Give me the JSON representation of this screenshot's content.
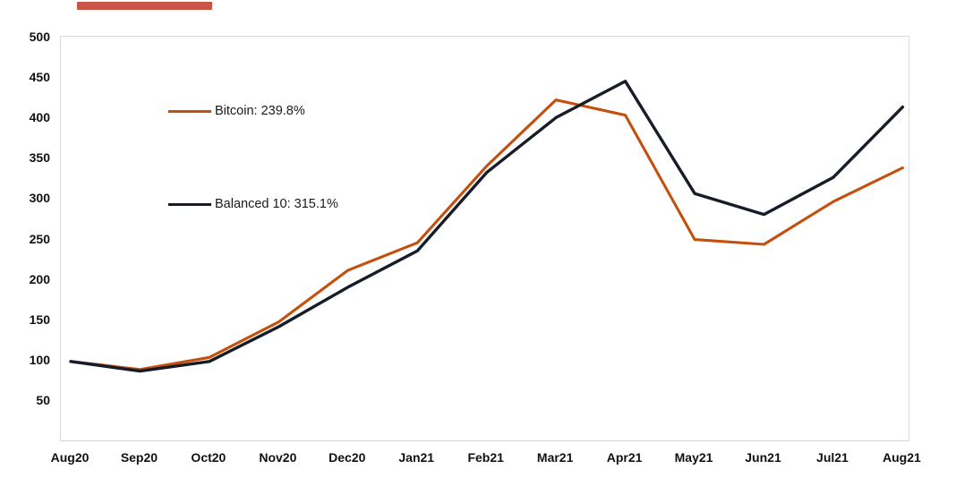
{
  "page": {
    "background": "#ffffff",
    "redaction_color": "#c64535"
  },
  "chart_data": {
    "type": "line",
    "categories": [
      "Aug20",
      "Sep20",
      "Oct20",
      "Nov20",
      "Dec20",
      "Jan21",
      "Feb21",
      "Mar21",
      "Apr21",
      "May21",
      "Jun21",
      "Jul21",
      "Aug21"
    ],
    "series": [
      {
        "name": "Bitcoin",
        "legend_label": "Bitcoin: 239.8%",
        "color": "#C5500E",
        "values": [
          100,
          90,
          105,
          149,
          213,
          247,
          342,
          424,
          405,
          251,
          245,
          298,
          339.8
        ]
      },
      {
        "name": "Balanced 10",
        "legend_label": "Balanced 10: 315.1%",
        "color": "#161C28",
        "values": [
          100,
          88,
          100,
          143,
          192,
          237,
          334,
          402,
          447,
          308,
          282,
          328,
          415.1
        ]
      }
    ],
    "title": "",
    "xlabel": "",
    "ylabel": "",
    "ylim": [
      0,
      500
    ],
    "yticks": [
      50,
      100,
      150,
      200,
      250,
      300,
      350,
      400,
      450,
      500
    ],
    "grid": false,
    "legend_position": "inside-top-left",
    "plot_border_color": "#d9d9d9"
  }
}
